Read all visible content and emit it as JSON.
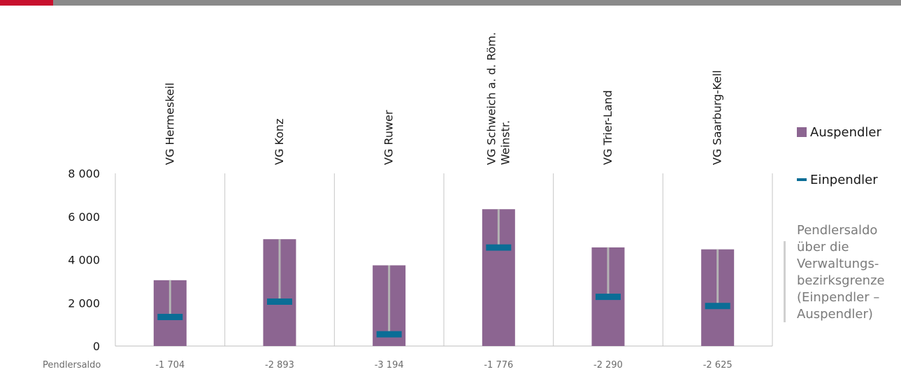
{
  "chart_data": {
    "type": "bar",
    "categories": [
      "VG Hermeskeil",
      "VG Konz",
      "VG Ruwer",
      "VG Schweich a. d. Röm. Weinstr.",
      "VG Trier-Land",
      "VG Saarburg-Kell"
    ],
    "category_lines": [
      [
        "VG Hermeskeil"
      ],
      [
        "VG Konz"
      ],
      [
        "VG Ruwer"
      ],
      [
        "VG Schweich a. d. Röm.",
        "Weinstr."
      ],
      [
        "VG Trier-Land"
      ],
      [
        "VG Saarburg-Kell"
      ]
    ],
    "series": [
      {
        "name": "Auspendler",
        "type": "bar",
        "color": "#8c6591",
        "values": [
          3050,
          4950,
          3740,
          6340,
          4570,
          4480
        ]
      },
      {
        "name": "Einpendler",
        "type": "marker",
        "color": "#0a6d96",
        "values": [
          1346,
          2057,
          546,
          4564,
          2280,
          1855
        ]
      }
    ],
    "ylim": [
      0,
      8000
    ],
    "yticks": [
      0,
      2000,
      4000,
      6000,
      8000
    ],
    "ytick_labels": [
      "0",
      "2 000",
      "4 000",
      "6 000",
      "8 000"
    ],
    "saldo_label": "Pendlersaldo",
    "saldo_values": [
      "-1 704",
      "-2 893",
      "-3 194",
      "-1 776",
      "-2 290",
      "-2 625"
    ],
    "connector_color": "#b4b4b4",
    "legend_position": "right",
    "note": "Pendlersaldo über die Verwaltungs-bezirksgrenze (Einpendler – Auspendler)",
    "note_lines": [
      "Pendlersaldo",
      "über die",
      "Verwaltungs-",
      "bezirksgrenze",
      "(Einpendler –",
      "Auspendler)"
    ]
  }
}
